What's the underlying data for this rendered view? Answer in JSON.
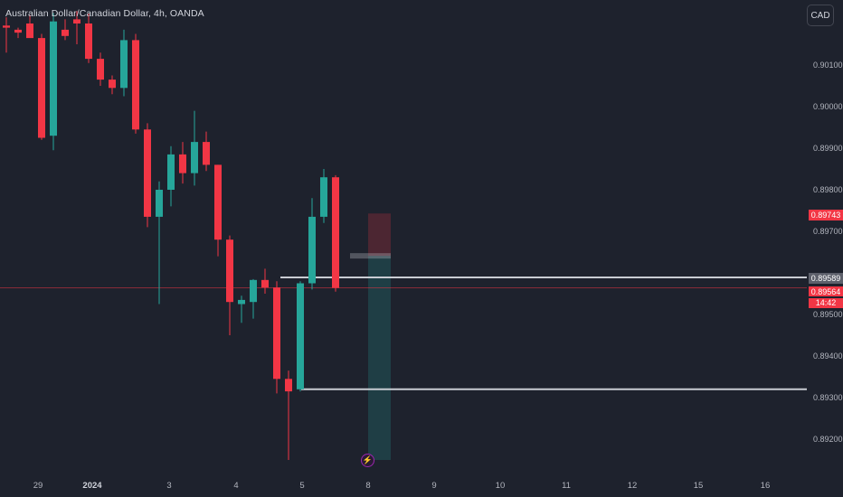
{
  "header": {
    "title": "Australian Dollar/Canadian Dollar, 4h, OANDA",
    "currency_button": "CAD"
  },
  "price_axis": {
    "ticks": [
      "0.90100",
      "0.90000",
      "0.89900",
      "0.89800",
      "0.89700",
      "0.89500",
      "0.89400",
      "0.89300",
      "0.89200"
    ],
    "tags": {
      "high_tag": "0.89743",
      "level_tag": "0.89589",
      "last_price": "0.89564",
      "countdown": "14:42"
    }
  },
  "time_axis": {
    "ticks": [
      {
        "label": "29",
        "bold": false
      },
      {
        "label": "2024",
        "bold": true
      },
      {
        "label": "3",
        "bold": false
      },
      {
        "label": "4",
        "bold": false
      },
      {
        "label": "5",
        "bold": false
      },
      {
        "label": "8",
        "bold": false
      },
      {
        "label": "9",
        "bold": false
      },
      {
        "label": "10",
        "bold": false
      },
      {
        "label": "11",
        "bold": false
      },
      {
        "label": "12",
        "bold": false
      },
      {
        "label": "15",
        "bold": false
      },
      {
        "label": "16",
        "bold": false
      }
    ]
  },
  "colors": {
    "background": "#1e222d",
    "up": "#26a69a",
    "down": "#f23645",
    "level_line": "#c9ccd3",
    "last_price_line": "#f23645",
    "tag_red": "#f23645",
    "tag_gray": "#5d606b"
  },
  "icons": {
    "event_marker": "lightning-icon"
  },
  "chart_data": {
    "type": "candlestick",
    "title": "Australian Dollar/Canadian Dollar, 4h, OANDA",
    "symbol": "AUDCAD",
    "timeframe": "4h",
    "source": "OANDA",
    "currency": "CAD",
    "y_axis_ticks": [
      0.901,
      0.9,
      0.899,
      0.898,
      0.897,
      0.895,
      0.894,
      0.893,
      0.892
    ],
    "x_axis_ticks": [
      "29",
      "2024",
      "3",
      "4",
      "5",
      "8",
      "9",
      "10",
      "11",
      "12",
      "15",
      "16"
    ],
    "candles": [
      {
        "o": 0.90195,
        "h": 0.90215,
        "l": 0.9013,
        "c": 0.9019
      },
      {
        "o": 0.90185,
        "h": 0.9019,
        "l": 0.90165,
        "c": 0.90178
      },
      {
        "o": 0.902,
        "h": 0.9022,
        "l": 0.9017,
        "c": 0.90165
      },
      {
        "o": 0.90165,
        "h": 0.90175,
        "l": 0.8992,
        "c": 0.89925
      },
      {
        "o": 0.8993,
        "h": 0.90225,
        "l": 0.89895,
        "c": 0.90205
      },
      {
        "o": 0.90185,
        "h": 0.9021,
        "l": 0.9016,
        "c": 0.9017
      },
      {
        "o": 0.9021,
        "h": 0.9023,
        "l": 0.9015,
        "c": 0.902
      },
      {
        "o": 0.902,
        "h": 0.90225,
        "l": 0.90105,
        "c": 0.90115
      },
      {
        "o": 0.90115,
        "h": 0.9013,
        "l": 0.9005,
        "c": 0.90065
      },
      {
        "o": 0.90065,
        "h": 0.90075,
        "l": 0.9003,
        "c": 0.90045
      },
      {
        "o": 0.90045,
        "h": 0.90185,
        "l": 0.90025,
        "c": 0.9016
      },
      {
        "o": 0.9016,
        "h": 0.90175,
        "l": 0.89935,
        "c": 0.89945
      },
      {
        "o": 0.89945,
        "h": 0.8996,
        "l": 0.8971,
        "c": 0.89735
      },
      {
        "o": 0.89735,
        "h": 0.8982,
        "l": 0.89525,
        "c": 0.898
      },
      {
        "o": 0.898,
        "h": 0.89905,
        "l": 0.8976,
        "c": 0.89885
      },
      {
        "o": 0.89885,
        "h": 0.89915,
        "l": 0.89815,
        "c": 0.8984
      },
      {
        "o": 0.8984,
        "h": 0.8999,
        "l": 0.8981,
        "c": 0.89915
      },
      {
        "o": 0.89915,
        "h": 0.8994,
        "l": 0.89845,
        "c": 0.8986
      },
      {
        "o": 0.8986,
        "h": 0.8986,
        "l": 0.8964,
        "c": 0.8968
      },
      {
        "o": 0.8968,
        "h": 0.8969,
        "l": 0.8945,
        "c": 0.8953
      },
      {
        "o": 0.89525,
        "h": 0.89545,
        "l": 0.8948,
        "c": 0.89535
      },
      {
        "o": 0.8953,
        "h": 0.89585,
        "l": 0.8949,
        "c": 0.89583
      },
      {
        "o": 0.89583,
        "h": 0.8961,
        "l": 0.8955,
        "c": 0.89565
      },
      {
        "o": 0.89565,
        "h": 0.8958,
        "l": 0.8931,
        "c": 0.89345
      },
      {
        "o": 0.89345,
        "h": 0.89365,
        "l": 0.8915,
        "c": 0.89315
      },
      {
        "o": 0.8932,
        "h": 0.8958,
        "l": 0.89315,
        "c": 0.89575
      },
      {
        "o": 0.89575,
        "h": 0.8978,
        "l": 0.8956,
        "c": 0.89735
      },
      {
        "o": 0.89735,
        "h": 0.8985,
        "l": 0.8972,
        "c": 0.8983
      },
      {
        "o": 0.8983,
        "h": 0.89835,
        "l": 0.89555,
        "c": 0.89564
      }
    ],
    "horizontal_levels": [
      0.89589,
      0.8932
    ],
    "position_tool": {
      "entry": 0.89641,
      "stop": 0.89743,
      "target": 0.8915
    },
    "last_price": 0.89564,
    "y_range": [
      0.8915,
      0.9023
    ],
    "grid": false
  }
}
